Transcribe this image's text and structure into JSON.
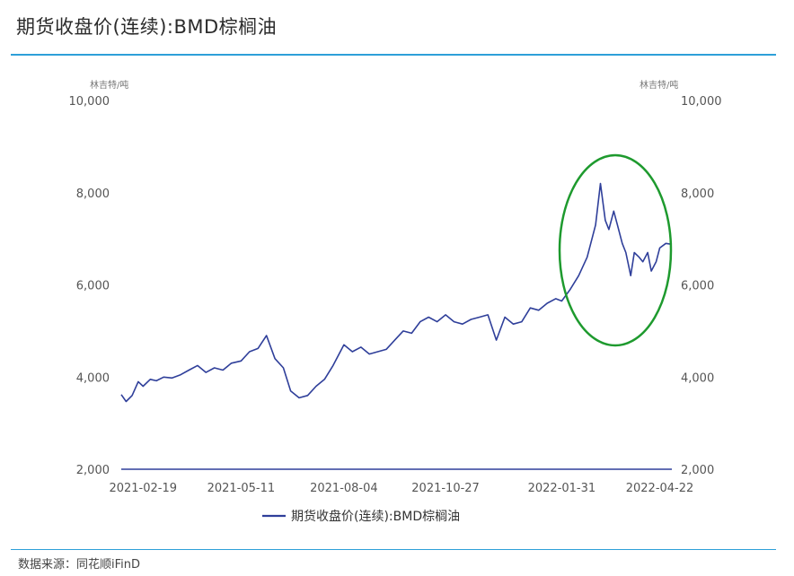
{
  "header": {
    "title": "期货收盘价(连续):BMD棕榈油"
  },
  "footer": {
    "source": "数据来源：同花顺iFinD"
  },
  "colors": {
    "series": "#2f3f9a",
    "axis": "#2f3f9a",
    "rule": "#2d9fd8",
    "highlight": "#1e9a2e"
  },
  "chart_data": {
    "type": "line",
    "y_unit_left": "林吉特/吨",
    "y_unit_right": "林吉特/吨",
    "ylim": [
      2000,
      10000
    ],
    "yticks": [
      2000,
      4000,
      6000,
      8000,
      10000
    ],
    "ytick_labels": [
      "2,000",
      "4,000",
      "6,000",
      "8,000",
      "10,000"
    ],
    "xtick_labels": [
      "2021-02-19",
      "2021-05-11",
      "2021-08-04",
      "2021-10-27",
      "2022-01-31",
      "2022-04-22"
    ],
    "legend": "期货收盘价(连续):BMD棕榈油",
    "annotation": "highlighted ellipse around 2022 spike",
    "series": [
      {
        "name": "期货收盘价(连续):BMD棕榈油",
        "x": [
          "2021-02-01",
          "2021-02-05",
          "2021-02-10",
          "2021-02-15",
          "2021-02-19",
          "2021-02-25",
          "2021-03-02",
          "2021-03-08",
          "2021-03-15",
          "2021-03-22",
          "2021-03-29",
          "2021-04-05",
          "2021-04-12",
          "2021-04-19",
          "2021-04-26",
          "2021-05-03",
          "2021-05-11",
          "2021-05-18",
          "2021-05-25",
          "2021-06-01",
          "2021-06-08",
          "2021-06-15",
          "2021-06-21",
          "2021-06-28",
          "2021-07-05",
          "2021-07-12",
          "2021-07-19",
          "2021-07-26",
          "2021-08-04",
          "2021-08-11",
          "2021-08-18",
          "2021-08-25",
          "2021-09-01",
          "2021-09-08",
          "2021-09-15",
          "2021-09-22",
          "2021-09-29",
          "2021-10-06",
          "2021-10-13",
          "2021-10-20",
          "2021-10-27",
          "2021-11-03",
          "2021-11-10",
          "2021-11-17",
          "2021-11-24",
          "2021-12-01",
          "2021-12-08",
          "2021-12-15",
          "2021-12-22",
          "2021-12-29",
          "2022-01-05",
          "2022-01-12",
          "2022-01-19",
          "2022-01-26",
          "2022-01-31",
          "2022-02-07",
          "2022-02-14",
          "2022-02-21",
          "2022-02-28",
          "2022-03-04",
          "2022-03-08",
          "2022-03-11",
          "2022-03-15",
          "2022-03-18",
          "2022-03-22",
          "2022-03-25",
          "2022-03-29",
          "2022-04-01",
          "2022-04-05",
          "2022-04-08",
          "2022-04-12",
          "2022-04-15",
          "2022-04-19",
          "2022-04-22",
          "2022-04-27",
          "2022-05-02"
        ],
        "values": [
          3620,
          3470,
          3600,
          3900,
          3800,
          3950,
          3920,
          4000,
          3980,
          4050,
          4150,
          4250,
          4100,
          4200,
          4150,
          4300,
          4350,
          4550,
          4620,
          4900,
          4400,
          4200,
          3700,
          3550,
          3600,
          3800,
          3950,
          4250,
          4700,
          4550,
          4650,
          4500,
          4550,
          4600,
          4800,
          5000,
          4950,
          5200,
          5300,
          5200,
          5350,
          5200,
          5150,
          5250,
          5300,
          5350,
          4800,
          5300,
          5150,
          5200,
          5500,
          5450,
          5600,
          5700,
          5650,
          5900,
          6200,
          6600,
          7300,
          8200,
          7400,
          7200,
          7600,
          7300,
          6900,
          6700,
          6200,
          6700,
          6600,
          6500,
          6700,
          6300,
          6500,
          6800,
          6900,
          6880
        ]
      }
    ]
  }
}
